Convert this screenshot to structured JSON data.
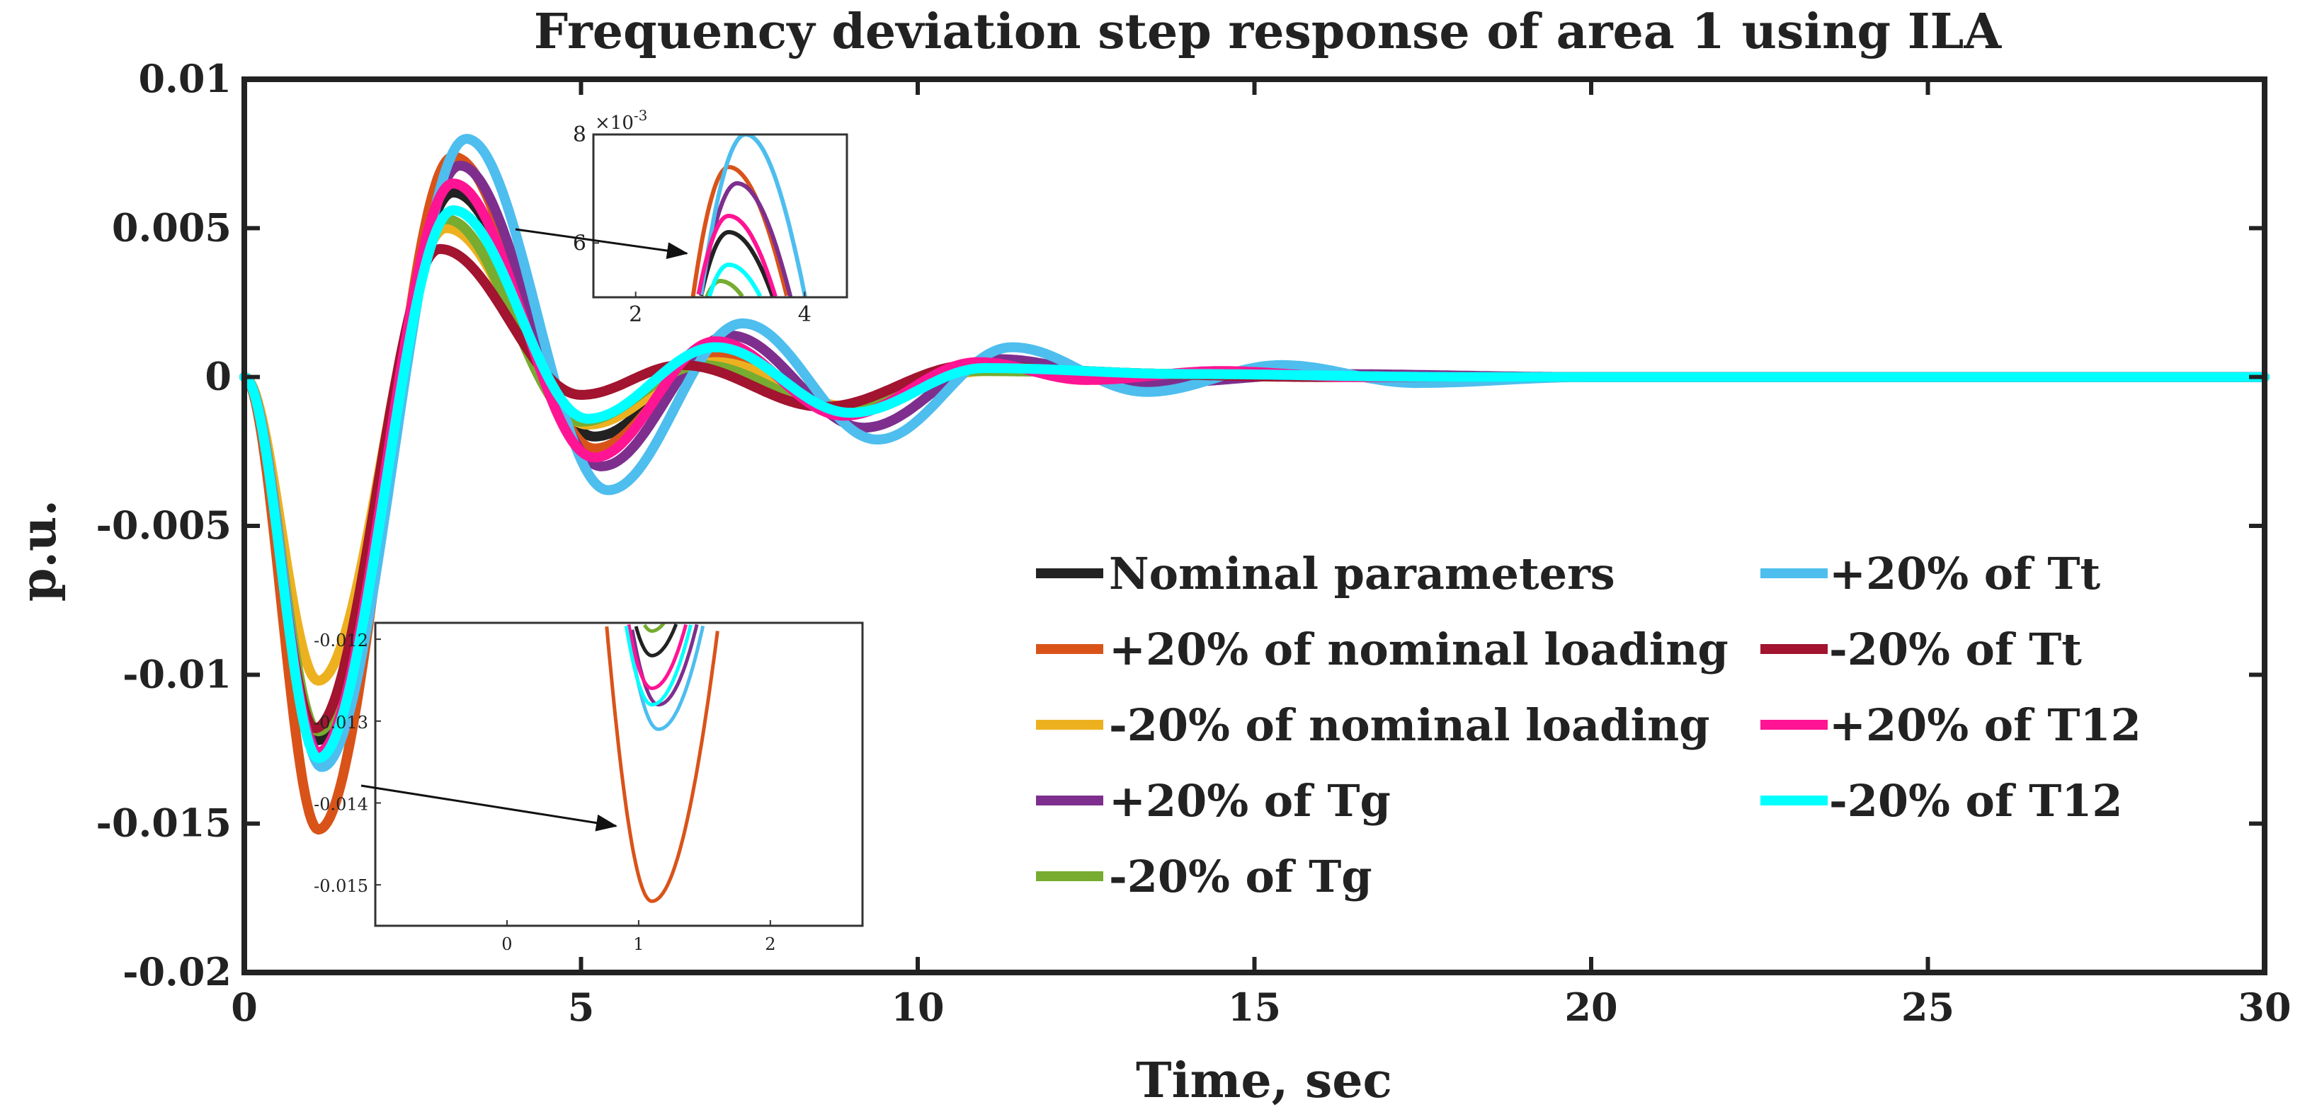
{
  "chart_data": {
    "type": "line",
    "title": "Frequency deviation step response of area 1 using ILA",
    "xlabel": "Time, sec",
    "ylabel": "p.u.",
    "xlim": [
      0,
      30
    ],
    "ylim": [
      -0.02,
      0.01
    ],
    "xticks": [
      0,
      5,
      10,
      15,
      20,
      25,
      30
    ],
    "xtick_labels": [
      "0",
      "5",
      "10",
      "15",
      "20",
      "25",
      "30"
    ],
    "yticks": [
      0.01,
      0.005,
      0,
      -0.005,
      -0.01,
      -0.015,
      -0.02
    ],
    "ytick_labels": [
      "0.01",
      "0.005",
      "0",
      "-0.005",
      "-0.01",
      "-0.015",
      "-0.02"
    ],
    "grid": false,
    "legend_position": "center-right",
    "series": [
      {
        "name": "Nominal parameters",
        "color": "#222222",
        "keypoints": [
          [
            0,
            0
          ],
          [
            1.1,
            -0.0122
          ],
          [
            3.1,
            0.0062
          ],
          [
            5.2,
            -0.002
          ],
          [
            7.0,
            0.0007
          ],
          [
            9.0,
            -0.0011
          ],
          [
            11.0,
            0.0003
          ],
          [
            14,
            0.0001
          ],
          [
            18,
            0
          ],
          [
            30,
            0
          ]
        ]
      },
      {
        "name": "+20% of nominal loading",
        "color": "#d95319",
        "keypoints": [
          [
            0,
            0
          ],
          [
            1.1,
            -0.0152
          ],
          [
            3.1,
            0.0074
          ],
          [
            5.2,
            -0.0024
          ],
          [
            7.0,
            0.0008
          ],
          [
            9.0,
            -0.0012
          ],
          [
            11.0,
            0.0003
          ],
          [
            14,
            0.0001
          ],
          [
            18,
            0
          ],
          [
            30,
            0
          ]
        ]
      },
      {
        "name": "-20% of nominal loading",
        "color": "#edb120",
        "keypoints": [
          [
            0,
            0
          ],
          [
            1.1,
            -0.0102
          ],
          [
            3.0,
            0.005
          ],
          [
            5.1,
            -0.0016
          ],
          [
            7.0,
            0.0005
          ],
          [
            9.0,
            -0.001
          ],
          [
            11.0,
            0.0002
          ],
          [
            14,
            0.0001
          ],
          [
            18,
            0
          ],
          [
            30,
            0
          ]
        ]
      },
      {
        "name": "+20% of Tg",
        "color": "#7e2f8e",
        "keypoints": [
          [
            0,
            0
          ],
          [
            1.15,
            -0.0128
          ],
          [
            3.2,
            0.0071
          ],
          [
            5.3,
            -0.003
          ],
          [
            7.2,
            0.0014
          ],
          [
            9.2,
            -0.0017
          ],
          [
            11.2,
            0.0006
          ],
          [
            13.5,
            -0.0002
          ],
          [
            16,
            0.0001
          ],
          [
            20,
            0
          ],
          [
            30,
            0
          ]
        ]
      },
      {
        "name": "-20% of Tg",
        "color": "#77ac30",
        "keypoints": [
          [
            0,
            0
          ],
          [
            1.1,
            -0.0119
          ],
          [
            3.0,
            0.0053
          ],
          [
            5.0,
            -0.0015
          ],
          [
            6.8,
            0.0004
          ],
          [
            8.8,
            -0.001
          ],
          [
            10.8,
            0.0002
          ],
          [
            14,
            0.0001
          ],
          [
            18,
            0
          ],
          [
            30,
            0
          ]
        ]
      },
      {
        "name": "+20% of Tt",
        "color": "#4dbeee",
        "keypoints": [
          [
            0,
            0
          ],
          [
            1.15,
            -0.0131
          ],
          [
            3.3,
            0.008
          ],
          [
            5.4,
            -0.0038
          ],
          [
            7.4,
            0.0018
          ],
          [
            9.4,
            -0.0021
          ],
          [
            11.4,
            0.001
          ],
          [
            13.4,
            -0.0005
          ],
          [
            15.4,
            0.0004
          ],
          [
            17.4,
            -0.0002
          ],
          [
            20,
            0
          ],
          [
            30,
            0
          ]
        ]
      },
      {
        "name": "-20% of Tt",
        "color": "#a2142f",
        "keypoints": [
          [
            0,
            0
          ],
          [
            1.05,
            -0.0118
          ],
          [
            2.9,
            0.0043
          ],
          [
            5.0,
            -0.0006
          ],
          [
            6.5,
            0.0004
          ],
          [
            8.6,
            -0.001
          ],
          [
            10.8,
            0.0004
          ],
          [
            13,
            0.0001
          ],
          [
            16,
            0
          ],
          [
            30,
            0
          ]
        ]
      },
      {
        "name": "+20% of T12",
        "color": "#ff1493",
        "keypoints": [
          [
            0,
            0
          ],
          [
            1.1,
            -0.0126
          ],
          [
            3.1,
            0.0065
          ],
          [
            5.2,
            -0.0027
          ],
          [
            7.0,
            0.0012
          ],
          [
            8.9,
            -0.0013
          ],
          [
            10.9,
            0.0005
          ],
          [
            12.5,
            -0.0001
          ],
          [
            14.5,
            0.0002
          ],
          [
            16.5,
            0
          ],
          [
            30,
            0
          ]
        ]
      },
      {
        "name": "-20% of T12",
        "color": "#00ffff",
        "keypoints": [
          [
            0,
            0
          ],
          [
            1.1,
            -0.0128
          ],
          [
            3.1,
            0.0056
          ],
          [
            5.1,
            -0.0014
          ],
          [
            7.0,
            0.001
          ],
          [
            9.0,
            -0.0012
          ],
          [
            11.0,
            0.0003
          ],
          [
            14,
            0.0001
          ],
          [
            18,
            0
          ],
          [
            30,
            0
          ]
        ]
      }
    ],
    "insets": [
      {
        "description": "zoom on first peak",
        "exponent_label": "×10",
        "exponent_power": "-3",
        "xlim": [
          1.5,
          4.5
        ],
        "ylim": [
          5.0,
          8.0
        ],
        "xticks": [
          2,
          4
        ],
        "xtick_labels": [
          "2",
          "4"
        ],
        "yticks": [
          6,
          8
        ],
        "ytick_labels": [
          "6",
          "8"
        ]
      },
      {
        "description": "zoom on first trough",
        "xlim": [
          -1.0,
          2.7
        ],
        "ylim": [
          -0.0155,
          -0.0118
        ],
        "xticks": [
          0,
          1,
          2
        ],
        "xtick_labels": [
          "0",
          "1",
          "2"
        ],
        "yticks": [
          -0.012,
          -0.013,
          -0.014,
          -0.015
        ],
        "ytick_labels": [
          "-0.012",
          "-0.013",
          "-0.014",
          "-0.015"
        ]
      }
    ]
  }
}
